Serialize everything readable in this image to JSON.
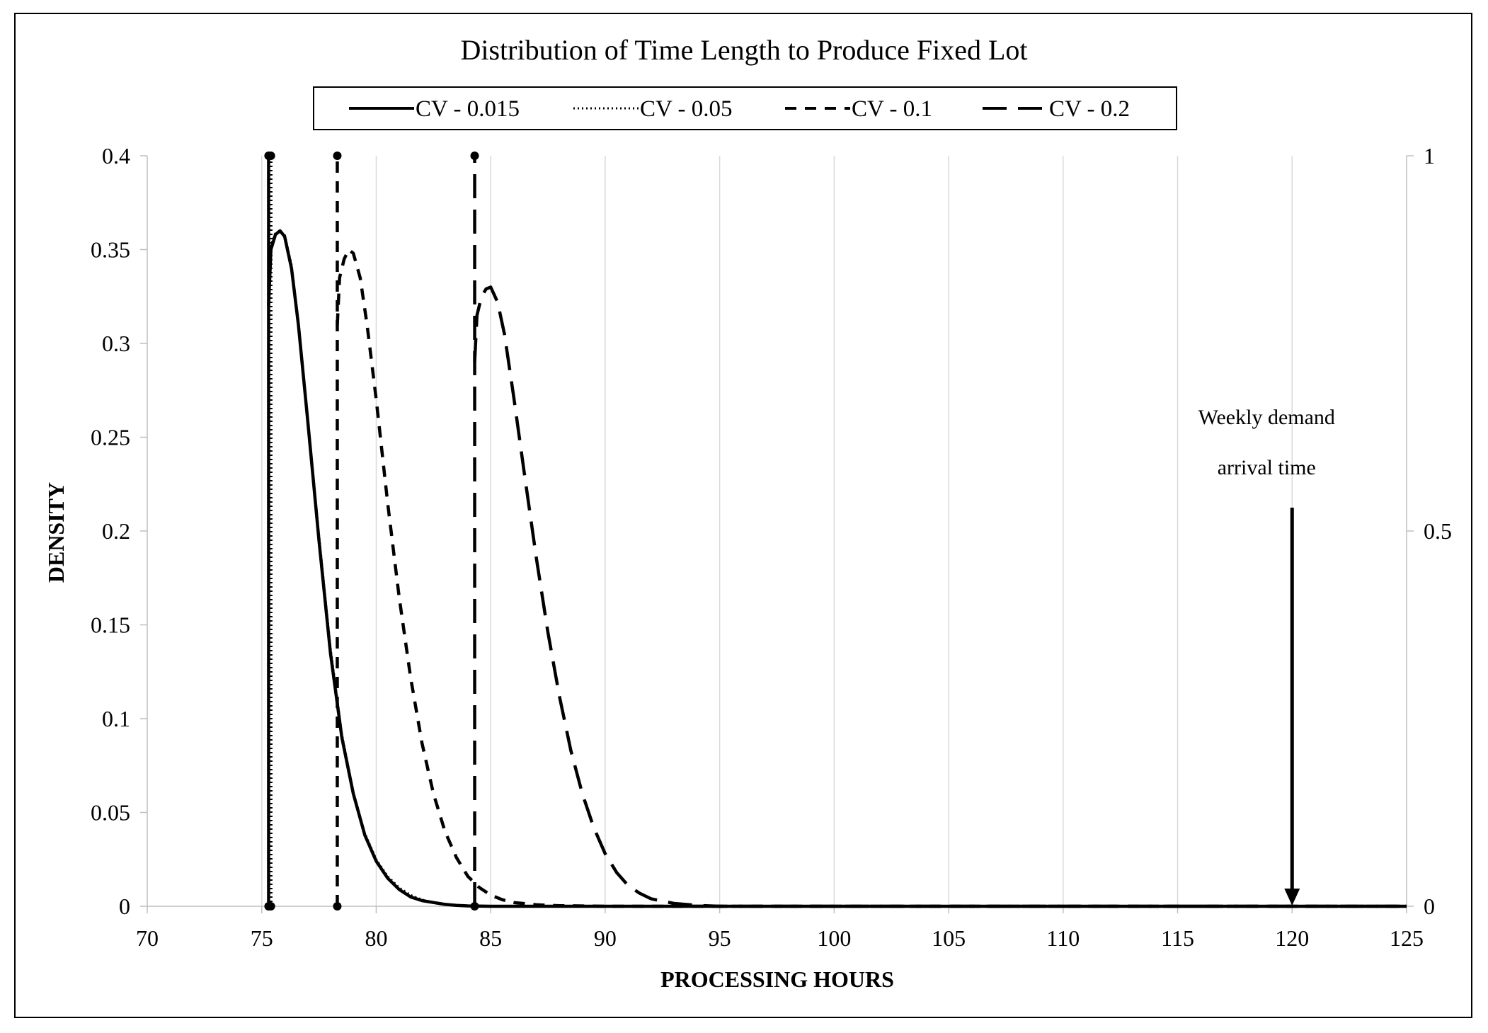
{
  "chart_data": {
    "type": "line",
    "title": "Distribution of Time Length to Produce Fixed Lot",
    "xlabel": "PROCESSING HOURS",
    "ylabel": "DENSITY",
    "xlim": [
      70,
      125
    ],
    "ylim": [
      0,
      0.4
    ],
    "y2lim": [
      0,
      1
    ],
    "x_ticks": [
      "70",
      "75",
      "80",
      "85",
      "90",
      "95",
      "100",
      "105",
      "110",
      "115",
      "120",
      "125"
    ],
    "y_ticks": [
      "0",
      "0.05",
      "0.1",
      "0.15",
      "0.2",
      "0.25",
      "0.3",
      "0.35",
      "0.4"
    ],
    "y2_ticks": [
      "0",
      "0.5",
      "1"
    ],
    "grid": "vertical",
    "legend_position": "top",
    "series": [
      {
        "name": "CV - 0.015",
        "style": "solid",
        "x": [
          75.3,
          75.4,
          75.6,
          75.8,
          76.0,
          76.3,
          76.6,
          77.0,
          77.5,
          78.0,
          78.5,
          79.0,
          79.5,
          80.0,
          80.5,
          81.0,
          81.5,
          82.0,
          82.5,
          83.0,
          83.5,
          84.0,
          85.0,
          90.0,
          100.0,
          110.0,
          120.0,
          125.0
        ],
        "y": [
          0.32,
          0.35,
          0.358,
          0.36,
          0.357,
          0.34,
          0.31,
          0.26,
          0.195,
          0.135,
          0.09,
          0.06,
          0.038,
          0.024,
          0.015,
          0.009,
          0.005,
          0.003,
          0.002,
          0.001,
          0.0005,
          0.0002,
          0.0,
          0.0,
          0.0,
          0.0,
          0.0,
          0.0
        ]
      },
      {
        "name": "CV - 0.05",
        "style": "dotted",
        "x": [
          75.3,
          75.4,
          75.6,
          75.8,
          76.0,
          76.3,
          76.6,
          77.0,
          77.5,
          78.0,
          78.5,
          79.0,
          79.5,
          80.0,
          80.5,
          81.0,
          81.5,
          82.0,
          82.5,
          83.0,
          84.0,
          85.0,
          90.0,
          100.0,
          110.0,
          120.0,
          125.0
        ],
        "y": [
          0.32,
          0.352,
          0.359,
          0.36,
          0.358,
          0.342,
          0.312,
          0.262,
          0.198,
          0.138,
          0.092,
          0.061,
          0.039,
          0.025,
          0.016,
          0.01,
          0.006,
          0.0035,
          0.002,
          0.001,
          0.0003,
          0.0,
          0.0,
          0.0,
          0.0,
          0.0,
          0.0
        ]
      },
      {
        "name": "CV - 0.1",
        "style": "dashed",
        "x": [
          78.3,
          78.4,
          78.6,
          78.8,
          79.0,
          79.3,
          79.6,
          80.0,
          80.5,
          81.0,
          81.5,
          82.0,
          82.5,
          83.0,
          83.5,
          84.0,
          84.5,
          85.0,
          85.5,
          86.0,
          87.0,
          88.0,
          90.0,
          100.0,
          110.0,
          120.0,
          125.0
        ],
        "y": [
          0.31,
          0.335,
          0.345,
          0.35,
          0.348,
          0.335,
          0.31,
          0.27,
          0.215,
          0.165,
          0.122,
          0.087,
          0.06,
          0.04,
          0.026,
          0.016,
          0.01,
          0.006,
          0.0035,
          0.002,
          0.0008,
          0.0003,
          0.0,
          0.0,
          0.0,
          0.0,
          0.0
        ]
      },
      {
        "name": "CV - 0.2",
        "style": "long-dashed",
        "x": [
          84.3,
          84.4,
          84.6,
          84.8,
          85.0,
          85.3,
          85.6,
          86.0,
          86.5,
          87.0,
          87.5,
          88.0,
          88.5,
          89.0,
          89.5,
          90.0,
          90.5,
          91.0,
          91.5,
          92.0,
          93.0,
          94.0,
          95.0,
          100.0,
          110.0,
          120.0,
          125.0
        ],
        "y": [
          0.29,
          0.315,
          0.325,
          0.329,
          0.33,
          0.322,
          0.305,
          0.272,
          0.228,
          0.185,
          0.146,
          0.112,
          0.083,
          0.06,
          0.042,
          0.028,
          0.018,
          0.011,
          0.007,
          0.004,
          0.0015,
          0.0005,
          0.0,
          0.0,
          0.0,
          0.0,
          0.0
        ]
      }
    ],
    "vertical_markers": [
      {
        "x": 75.3,
        "style": "solid",
        "y2_from": 0,
        "y2_to": 1
      },
      {
        "x": 75.4,
        "style": "dotted",
        "y2_from": 0,
        "y2_to": 1
      },
      {
        "x": 78.3,
        "style": "dashed",
        "y2_from": 0,
        "y2_to": 1
      },
      {
        "x": 84.3,
        "style": "long-dashed",
        "y2_from": 0,
        "y2_to": 1
      }
    ],
    "annotation": {
      "text_line1": "Weekly demand",
      "text_line2": "arrival time",
      "x": 120
    }
  }
}
